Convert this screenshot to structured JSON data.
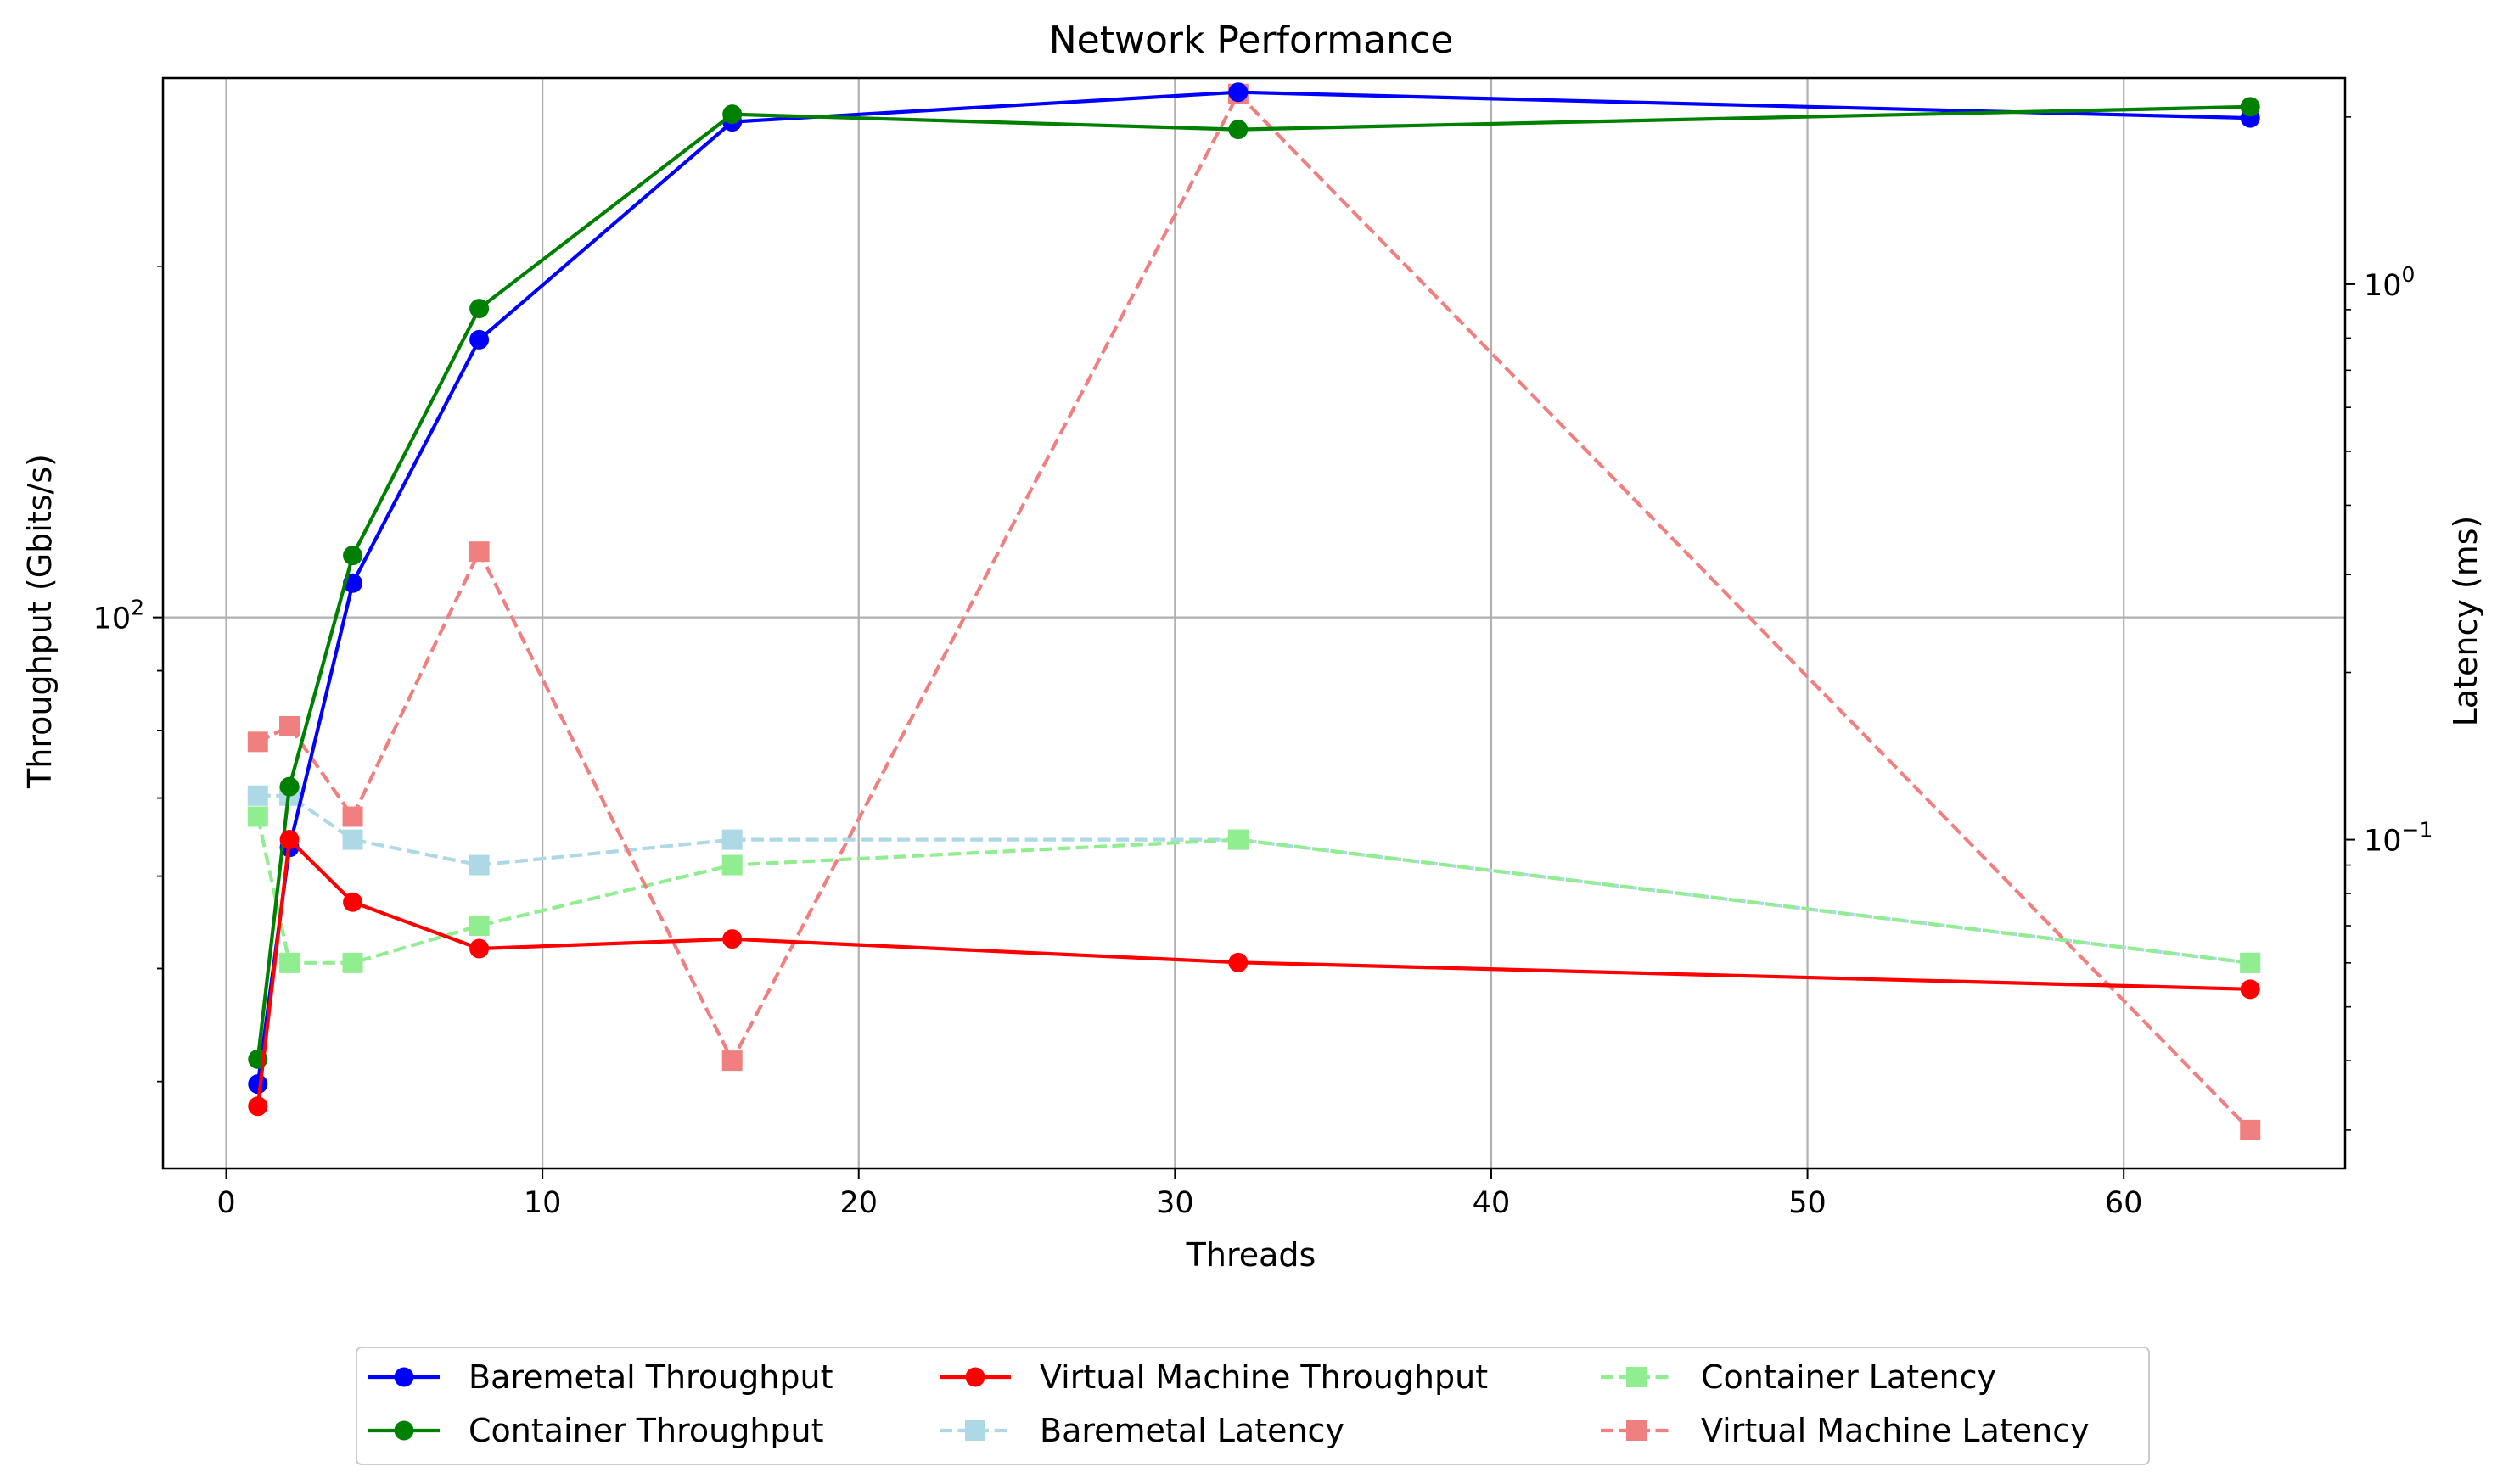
{
  "chart_data": {
    "type": "line",
    "title": "Network Performance",
    "xlabel": "Threads",
    "ylabel_left": "Throughput (Gbits/s)",
    "ylabel_right": "Latency (ms)",
    "x": [
      1,
      2,
      4,
      8,
      16,
      32,
      64
    ],
    "xlim": [
      -2,
      67
    ],
    "xticks": [
      0,
      10,
      20,
      30,
      40,
      50,
      60
    ],
    "xtick_labels": [
      "0",
      "10",
      "20",
      "30",
      "40",
      "50",
      "60"
    ],
    "y_left_scale": "log",
    "y_left_lim": [
      33.7,
      290
    ],
    "y_left_tick_labels": [
      {
        "value": 100,
        "base": "10",
        "exp": "2"
      }
    ],
    "y_right_scale": "log",
    "y_right_lim": [
      0.0256,
      2.35
    ],
    "y_right_tick_labels": [
      {
        "value": 1,
        "base": "10",
        "exp": "0"
      },
      {
        "value": 0.1,
        "base": "10",
        "exp": "−1"
      }
    ],
    "grid": true,
    "legend_position": "bottom-center",
    "series": [
      {
        "name": "Baremetal Throughput",
        "axis": "left",
        "color": "#0000ff",
        "style": "solid",
        "marker": "circle",
        "values": [
          39.8,
          63.5,
          107,
          173,
          266,
          282,
          268
        ]
      },
      {
        "name": "Container Throughput",
        "axis": "left",
        "color": "#008000",
        "style": "solid",
        "marker": "circle",
        "values": [
          41.8,
          71.6,
          113,
          184,
          270,
          262,
          274
        ]
      },
      {
        "name": "Virtual Machine Throughput",
        "axis": "left",
        "color": "#ff0000",
        "style": "solid",
        "marker": "circle",
        "values": [
          38.1,
          64.5,
          57.0,
          52.0,
          53.0,
          50.6,
          48.0
        ]
      },
      {
        "name": "Baremetal Latency",
        "axis": "right",
        "color": "#add8e6",
        "style": "dashed",
        "marker": "square",
        "values": [
          0.12,
          0.12,
          0.1,
          0.09,
          0.1,
          0.1,
          0.06
        ]
      },
      {
        "name": "Container Latency",
        "axis": "right",
        "color": "#90ee90",
        "style": "dashed",
        "marker": "square",
        "values": [
          0.11,
          0.06,
          0.06,
          0.07,
          0.09,
          0.1,
          0.06
        ]
      },
      {
        "name": "Virtual Machine Latency",
        "axis": "right",
        "color": "#f08080",
        "style": "dashed",
        "marker": "square",
        "values": [
          0.15,
          0.16,
          0.11,
          0.33,
          0.04,
          2.2,
          0.03
        ]
      }
    ]
  }
}
